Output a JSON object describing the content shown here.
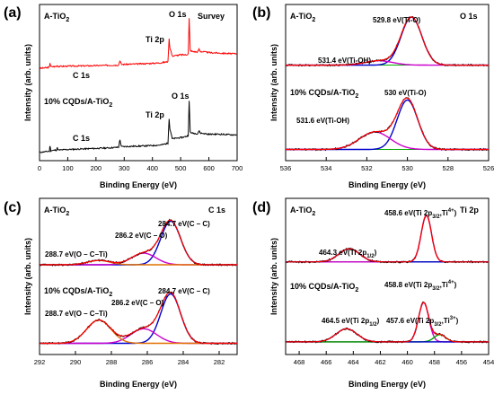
{
  "chart_data": [
    {
      "panel": "(a)",
      "type": "line",
      "xlabel": "Binding Energy (eV)",
      "ylabel": "Intensity (arb. units)",
      "xlim": [
        0,
        700
      ],
      "xticks": [
        0,
        100,
        200,
        300,
        400,
        500,
        600,
        700
      ],
      "colors": {
        "A-TiO2": "#ff0000",
        "10% CQDs/A-TiO2": "#000000"
      },
      "samples": [
        {
          "label": "A-TiO₂",
          "color": "#ff0000",
          "annotations": [
            {
              "text": "C 1s",
              "x": 285
            },
            {
              "text": "Ti 2p",
              "x": 459
            },
            {
              "text": "O 1s",
              "x": 530
            },
            {
              "text": "Survey",
              "x": 640
            }
          ],
          "points": [
            [
              0,
              0.74
            ],
            [
              20,
              0.745
            ],
            [
              35,
              0.75
            ],
            [
              37,
              0.79
            ],
            [
              40,
              0.755
            ],
            [
              60,
              0.757
            ],
            [
              63,
              0.77
            ],
            [
              66,
              0.758
            ],
            [
              100,
              0.76
            ],
            [
              150,
              0.762
            ],
            [
              200,
              0.765
            ],
            [
              250,
              0.768
            ],
            [
              280,
              0.77
            ],
            [
              285,
              0.81
            ],
            [
              290,
              0.775
            ],
            [
              350,
              0.78
            ],
            [
              400,
              0.785
            ],
            [
              430,
              0.79
            ],
            [
              455,
              0.8
            ],
            [
              459,
              1.0
            ],
            [
              462,
              0.92
            ],
            [
              465,
              0.9
            ],
            [
              470,
              0.85
            ],
            [
              500,
              0.86
            ],
            [
              520,
              0.86
            ],
            [
              527,
              0.87
            ],
            [
              530,
              1.18
            ],
            [
              534,
              0.9
            ],
            [
              540,
              0.89
            ],
            [
              560,
              0.885
            ],
            [
              565,
              0.91
            ],
            [
              570,
              0.89
            ],
            [
              600,
              0.88
            ],
            [
              640,
              0.875
            ],
            [
              680,
              0.87
            ],
            [
              700,
              0.87
            ]
          ]
        },
        {
          "label": "10% CQDs/A-TiO₂",
          "color": "#000000",
          "annotations": [
            {
              "text": "C 1s",
              "x": 285
            },
            {
              "text": "Ti 2p",
              "x": 459
            },
            {
              "text": "O 1s",
              "x": 530
            }
          ],
          "points": [
            [
              0,
              0.0
            ],
            [
              20,
              0.005
            ],
            [
              35,
              0.01
            ],
            [
              37,
              0.06
            ],
            [
              40,
              0.015
            ],
            [
              60,
              0.02
            ],
            [
              63,
              0.04
            ],
            [
              66,
              0.02
            ],
            [
              100,
              0.025
            ],
            [
              150,
              0.03
            ],
            [
              200,
              0.035
            ],
            [
              250,
              0.04
            ],
            [
              280,
              0.045
            ],
            [
              285,
              0.11
            ],
            [
              290,
              0.05
            ],
            [
              350,
              0.055
            ],
            [
              400,
              0.06
            ],
            [
              430,
              0.065
            ],
            [
              455,
              0.08
            ],
            [
              459,
              0.3
            ],
            [
              462,
              0.2
            ],
            [
              465,
              0.18
            ],
            [
              470,
              0.12
            ],
            [
              500,
              0.13
            ],
            [
              520,
              0.14
            ],
            [
              527,
              0.15
            ],
            [
              530,
              0.45
            ],
            [
              534,
              0.18
            ],
            [
              540,
              0.17
            ],
            [
              560,
              0.165
            ],
            [
              565,
              0.19
            ],
            [
              570,
              0.17
            ],
            [
              600,
              0.16
            ],
            [
              640,
              0.16
            ],
            [
              680,
              0.155
            ],
            [
              700,
              0.155
            ]
          ]
        }
      ]
    },
    {
      "panel": "(b)",
      "type": "line",
      "xlabel": "Binding Energy (eV)",
      "ylabel": "Intensity (arb. units)",
      "xlim": [
        536,
        526
      ],
      "xticks": [
        536,
        534,
        532,
        530,
        528,
        526
      ],
      "samples": [
        {
          "label": "A-TiO₂",
          "region": "O 1s",
          "baseline": 0.62,
          "peaks": [
            {
              "name": "529.8 eV(Ti-O)",
              "center": 529.8,
              "height": 0.33,
              "fwhm": 1.2,
              "color": "#0000cc"
            },
            {
              "name": "531.4 eV(Ti-OH)",
              "center": 531.4,
              "height": 0.03,
              "fwhm": 1.6,
              "color": "#cc00cc"
            }
          ]
        },
        {
          "label": "10% CQDs/A-TiO₂",
          "baseline": 0.04,
          "peaks": [
            {
              "name": "530 eV(Ti-O)",
              "center": 530.0,
              "height": 0.34,
              "fwhm": 1.2,
              "color": "#0000cc"
            },
            {
              "name": "531.6 eV(Ti-OH)",
              "center": 531.6,
              "height": 0.12,
              "fwhm": 1.8,
              "color": "#cc00cc"
            }
          ]
        }
      ]
    },
    {
      "panel": "(c)",
      "type": "line",
      "xlabel": "Binding Energy (eV)",
      "ylabel": "Intensity (arb. units)",
      "xlim": [
        292,
        281
      ],
      "xticks": [
        292,
        290,
        288,
        286,
        284,
        282
      ],
      "samples": [
        {
          "label": "A-TiO₂",
          "region": "C 1s",
          "baseline": 0.58,
          "peaks": [
            {
              "name": "284.7 eV(C – C)",
              "center": 284.7,
              "height": 0.3,
              "fwhm": 1.3,
              "color": "#0000cc"
            },
            {
              "name": "286.2 eV(C – O)",
              "center": 286.2,
              "height": 0.08,
              "fwhm": 1.6,
              "color": "#cc00cc"
            },
            {
              "name": "288.7 eV(O – C–Ti)",
              "center": 288.7,
              "height": 0.03,
              "fwhm": 1.5,
              "color": "#e07000"
            }
          ]
        },
        {
          "label": "10% CQDs/A-TiO₂",
          "baseline": 0.04,
          "peaks": [
            {
              "name": "284.7 eV(C – C)",
              "center": 284.7,
              "height": 0.34,
              "fwhm": 1.3,
              "color": "#0000cc"
            },
            {
              "name": "286.2 eV(C – O)",
              "center": 286.2,
              "height": 0.1,
              "fwhm": 1.7,
              "color": "#cc00cc"
            },
            {
              "name": "288.7 eV(O – C–Ti)",
              "center": 288.7,
              "height": 0.16,
              "fwhm": 1.6,
              "color": "#e07000"
            }
          ]
        }
      ]
    },
    {
      "panel": "(d)",
      "type": "line",
      "xlabel": "Binding Energy (eV)",
      "ylabel": "Intensity (arb. units)",
      "xlim": [
        469,
        454
      ],
      "xticks": [
        468,
        466,
        464,
        462,
        460,
        458,
        456,
        454
      ],
      "samples": [
        {
          "label": "A-TiO₂",
          "region": "Ti 2p",
          "baseline": 0.6,
          "peaks": [
            {
              "name": "458.6 eV",
              "center": 458.6,
              "height": 0.32,
              "fwhm": 0.9,
              "color": "#cc00cc"
            },
            {
              "name": "464.3 eV",
              "center": 464.3,
              "height": 0.09,
              "fwhm": 1.8,
              "color": "#0000cc"
            }
          ]
        },
        {
          "label": "10% CQDs/A-TiO₂",
          "baseline": 0.05,
          "peaks": [
            {
              "name": "458.8 eV",
              "center": 458.8,
              "height": 0.27,
              "fwhm": 0.9,
              "color": "#cc00cc"
            },
            {
              "name": "457.6 eV",
              "center": 457.6,
              "height": 0.05,
              "fwhm": 1.0,
              "color": "#00aa00"
            },
            {
              "name": "464.5 eV",
              "center": 464.5,
              "height": 0.09,
              "fwhm": 1.8,
              "color": "#0000cc"
            }
          ]
        }
      ]
    }
  ],
  "texts": {
    "a": {
      "letter": "(a)",
      "s1": "A-TiO",
      "sub": "2",
      "s2": "10% CQDs/A-TiO",
      "survey": "Survey",
      "c1s_top": "C 1s",
      "ti2p_top": "Ti 2p",
      "o1s_top": "O 1s",
      "c1s_bot": "C 1s",
      "ti2p_bot": "Ti 2p",
      "o1s_bot": "O 1s"
    },
    "b": {
      "letter": "(b)",
      "s1": "A-TiO",
      "sub": "2",
      "region": "O 1s",
      "s2": "10% CQDs/A-TiO",
      "p1": "529.8 eV(Ti-O)",
      "p2": "531.4 eV(Ti-OH)",
      "p3": "530 eV(Ti-O)",
      "p4": "531.6 eV(Ti-OH)"
    },
    "c": {
      "letter": "(c)",
      "s1": "A-TiO",
      "sub": "2",
      "region": "C 1s",
      "s2": "10% CQDs/A-TiO",
      "p1": "284.7 eV(C – C)",
      "p2": "286.2 eV(C – O)",
      "p3": "288.7 eV(O – C–Ti)",
      "p4": "284.7 eV(C – C)",
      "p5": "286.2 eV(C – O)",
      "p6": "288.7 eV(O – C–Ti)"
    },
    "d": {
      "letter": "(d)",
      "s1": "A-TiO",
      "sub": "2",
      "region": "Ti 2p",
      "s2": "10% CQDs/A-TiO",
      "p1a": "458.6 eV(Ti 2p",
      "p1b": "3/2",
      "p1c": ",Ti",
      "p1d": "4+",
      "p1e": ")",
      "p2a": "464.3 eV(Ti 2p",
      "p2b": "1/2",
      "p2c": ")",
      "p3a": "458.8 eV(Ti 2p",
      "p3b": "3/2",
      "p3c": ",Ti",
      "p3d": "4+",
      "p3e": ")",
      "p4a": "457.6 eV(Ti 2p",
      "p4b": "3/2",
      "p4c": ",Ti",
      "p4d": "3+",
      "p4e": ")",
      "p5a": "464.5 eV(Ti 2p",
      "p5b": "1/2",
      "p5c": ")"
    },
    "xlabel": "Binding Energy (eV)",
    "ylabel": "Intensity (arb. units)"
  }
}
